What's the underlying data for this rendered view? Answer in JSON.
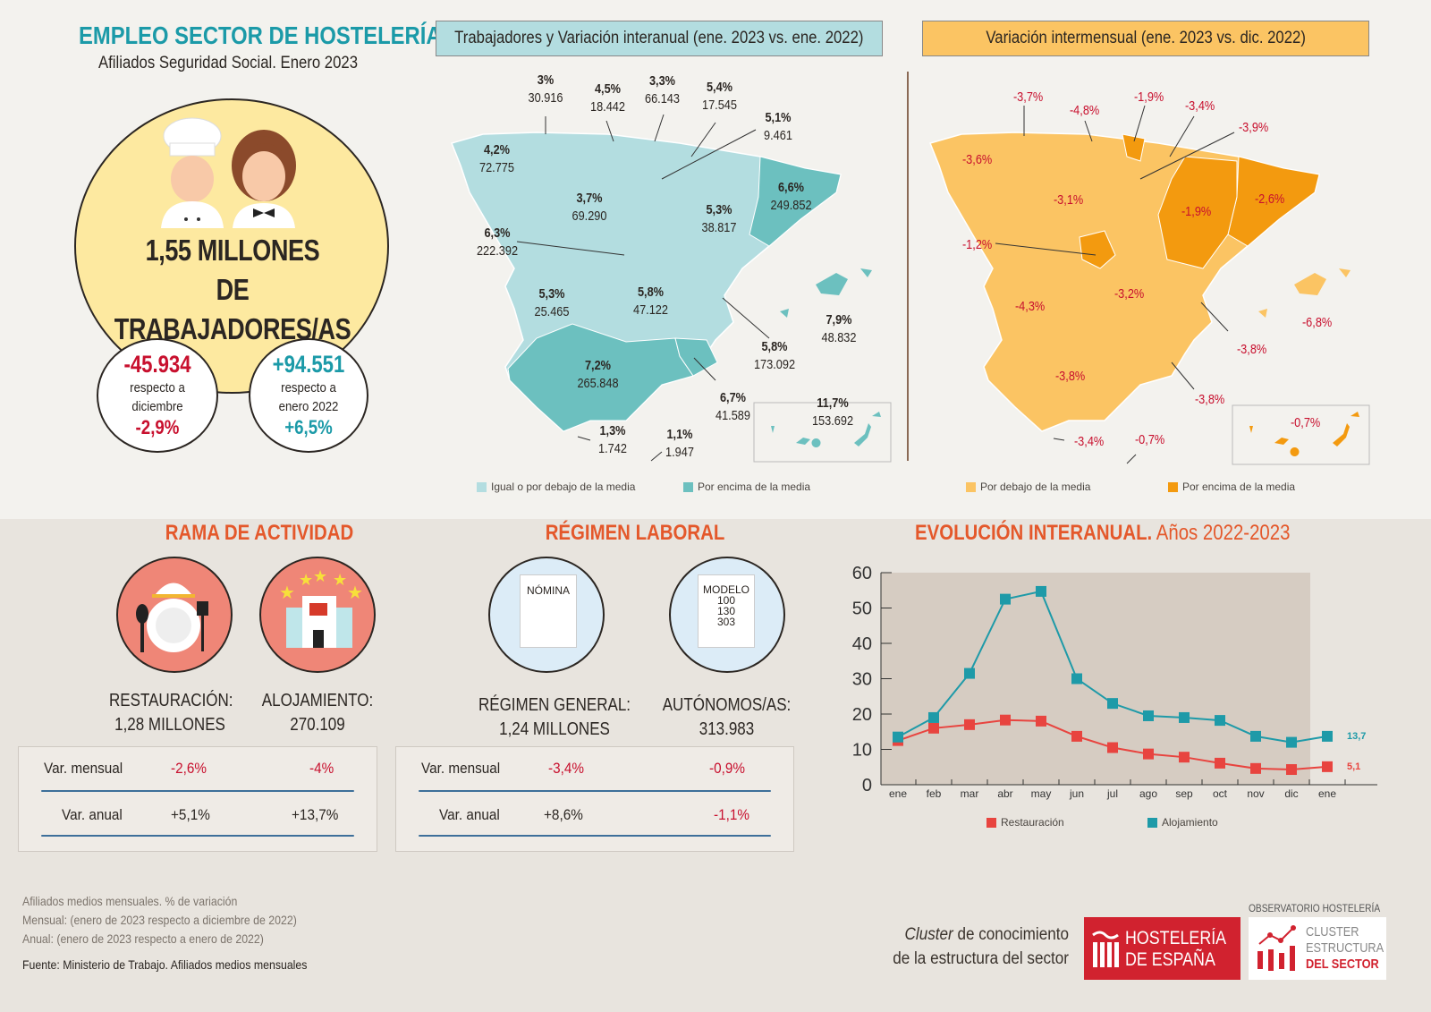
{
  "header": {
    "title": "EMPLEO SECTOR DE HOSTELERÍA",
    "subtitle": "Afiliados Seguridad Social. Enero 2023"
  },
  "summary": {
    "total": "1,55 MILLONES",
    "total_line2": "DE TRABAJADORES/AS",
    "monthly": {
      "value": "-45.934",
      "label1": "respecto a",
      "label2": "diciembre",
      "pct": "-2,9%"
    },
    "annual": {
      "value": "+94.551",
      "label1": "respecto a",
      "label2": "enero 2022",
      "pct": "+6,5%"
    }
  },
  "map_annual": {
    "title": "Trabajadores y Variación interanual (ene. 2023 vs. ene. 2022)",
    "regions": [
      {
        "pct": "3%",
        "value": "30.916"
      },
      {
        "pct": "4,5%",
        "value": "18.442"
      },
      {
        "pct": "3,3%",
        "value": "66.143"
      },
      {
        "pct": "5,4%",
        "value": "17.545"
      },
      {
        "pct": "5,1%",
        "value": "9.461"
      },
      {
        "pct": "4,2%",
        "value": "72.775"
      },
      {
        "pct": "3,7%",
        "value": "69.290"
      },
      {
        "pct": "5,3%",
        "value": "38.817"
      },
      {
        "pct": "6,6%",
        "value": "249.852"
      },
      {
        "pct": "6,3%",
        "value": "222.392"
      },
      {
        "pct": "5,3%",
        "value": "25.465"
      },
      {
        "pct": "5,8%",
        "value": "47.122"
      },
      {
        "pct": "7,9%",
        "value": "48.832"
      },
      {
        "pct": "5,8%",
        "value": "173.092"
      },
      {
        "pct": "7,2%",
        "value": "265.848"
      },
      {
        "pct": "6,7%",
        "value": "41.589"
      },
      {
        "pct": "11,7%",
        "value": "153.692"
      },
      {
        "pct": "1,3%",
        "value": "1.742"
      },
      {
        "pct": "1,1%",
        "value": "1.947"
      }
    ],
    "legend": [
      "Igual o por debajo de la media",
      "Por encima de la media"
    ],
    "colors": {
      "below": "#b3dde0",
      "above": "#6cc0bf"
    }
  },
  "map_monthly": {
    "title": "Variación intermensual (ene. 2023 vs. dic. 2022)",
    "regions": [
      "-3,7%",
      "-4,8%",
      "-1,9%",
      "-3,4%",
      "-3,9%",
      "-3,6%",
      "-3,1%",
      "-1,9%",
      "-2,6%",
      "-1,2%",
      "-4,3%",
      "-3,2%",
      "-6,8%",
      "-3,8%",
      "-3,8%",
      "-3,8%",
      "-3,4%",
      "-0,7%",
      "-0,7%"
    ],
    "legend": [
      "Por debajo de la media",
      "Por encima de la media"
    ],
    "colors": {
      "below": "#fbc463",
      "above": "#f39a0f"
    }
  },
  "rama": {
    "title": "RAMA DE ACTIVIDAD",
    "items": [
      {
        "name": "RESTAURACIÓN:",
        "value": "1,28 MILLONES"
      },
      {
        "name": "ALOJAMIENTO:",
        "value": "270.109"
      }
    ],
    "rows": [
      {
        "label": "Var. mensual",
        "a": "-2,6%",
        "b": "-4%"
      },
      {
        "label": "Var. anual",
        "a": "+5,1%",
        "b": "+13,7%"
      }
    ]
  },
  "regimen": {
    "title": "RÉGIMEN LABORAL",
    "doc1": "NÓMINA",
    "doc2": "MODELO",
    "doc2_lines": [
      "100",
      "130",
      "303"
    ],
    "items": [
      {
        "name": "RÉGIMEN GENERAL:",
        "value": "1,24 MILLONES"
      },
      {
        "name": "AUTÓNOMOS/AS:",
        "value": "313.983"
      }
    ],
    "rows": [
      {
        "label": "Var. mensual",
        "a": "-3,4%",
        "b": "-0,9%"
      },
      {
        "label": "Var. anual",
        "a": "+8,6%",
        "b": "-1,1%"
      }
    ]
  },
  "chart_data": {
    "type": "line",
    "title": "EVOLUCIÓN INTERANUAL.",
    "subtitle": "Años 2022-2023",
    "categories": [
      "ene",
      "feb",
      "mar",
      "abr",
      "may",
      "jun",
      "jul",
      "ago",
      "sep",
      "oct",
      "nov",
      "dic",
      "ene"
    ],
    "yticks": [
      0,
      10,
      20,
      30,
      40,
      50,
      60
    ],
    "ylim": [
      0,
      60
    ],
    "series": [
      {
        "name": "Restauración",
        "color": "#e8443f",
        "values": [
          12.5,
          16,
          17,
          18.3,
          18,
          13.7,
          10.5,
          8.7,
          7.8,
          6.1,
          4.6,
          4.3,
          5.1
        ],
        "end_label": "5,1"
      },
      {
        "name": "Alojamiento",
        "color": "#1e9aa8",
        "values": [
          13.5,
          19,
          31.5,
          52.5,
          54.7,
          30,
          23,
          19.5,
          19,
          18.2,
          13.7,
          12,
          13.7
        ],
        "end_label": "13,7"
      }
    ],
    "legend": "bottom"
  },
  "footer": {
    "notes": [
      "Afiliados medios mensuales. % de variación",
      "Mensual: (enero de 2023 respecto a diciembre de 2022)",
      "Anual: (enero de 2023 respecto a enero de 2022)"
    ],
    "source": "Fuente: Ministerio de Trabajo. Afiliados medios mensuales",
    "cluster_italic": "Cluster",
    "cluster_rest": " de conocimiento",
    "cluster_line2": "de la estructura del sector",
    "logo1": [
      "HOSTELERÍA",
      "DE ESPAÑA"
    ],
    "observatorio": "OBSERVATORIO HOSTELERÍA",
    "logo2": [
      "CLUSTER",
      "ESTRUCTURA",
      "DEL SECTOR"
    ]
  }
}
